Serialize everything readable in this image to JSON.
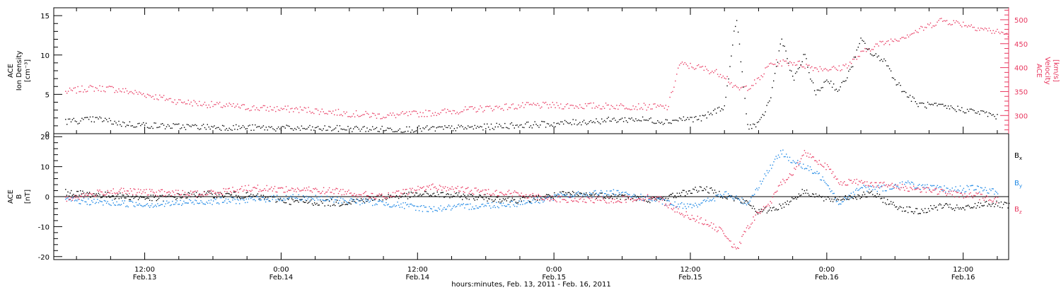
{
  "colors": {
    "black": "#000000",
    "magenta": "#e8375f",
    "blue": "#1e88e5"
  },
  "chart_data": [
    {
      "type": "scatter",
      "panel": "top",
      "ylabel_left": [
        "ACE",
        "Ion Density",
        "[cm⁻³]"
      ],
      "ylabel_right": [
        "ACE",
        "Velocity",
        "[km/s]"
      ],
      "left_axis": {
        "ylim": [
          0,
          16
        ],
        "ticks": [
          0,
          5,
          10,
          15
        ]
      },
      "right_axis": {
        "ylim": [
          262,
          525
        ],
        "ticks": [
          300,
          350,
          400,
          450,
          500
        ]
      },
      "xlim_hours": [
        4,
        88
      ],
      "density_series": {
        "color": "#000000",
        "points": [
          [
            5,
            1.6
          ],
          [
            8,
            1.9
          ],
          [
            10,
            1.3
          ],
          [
            14,
            1.0
          ],
          [
            18,
            0.9
          ],
          [
            22,
            0.8
          ],
          [
            26,
            0.7
          ],
          [
            30,
            0.7
          ],
          [
            34,
            0.6
          ],
          [
            38,
            0.7
          ],
          [
            42,
            0.9
          ],
          [
            44,
            1.1
          ],
          [
            48,
            1.3
          ],
          [
            52,
            1.7
          ],
          [
            55,
            1.9
          ],
          [
            58,
            1.6
          ],
          [
            59,
            1.9
          ],
          [
            61,
            2.0
          ],
          [
            63,
            3.6
          ],
          [
            64,
            15.0
          ],
          [
            65,
            1.0
          ],
          [
            66,
            1.2
          ],
          [
            67,
            4.5
          ],
          [
            68,
            12.3
          ],
          [
            69,
            6.8
          ],
          [
            70,
            10.0
          ],
          [
            71,
            5.0
          ],
          [
            72,
            7.0
          ],
          [
            73,
            5.5
          ],
          [
            74,
            8.0
          ],
          [
            75,
            12.0
          ],
          [
            76,
            10.0
          ],
          [
            77,
            9.5
          ],
          [
            78,
            6.8
          ],
          [
            79,
            5.0
          ],
          [
            80,
            3.8
          ],
          [
            82,
            3.5
          ],
          [
            84,
            3.1
          ],
          [
            86,
            2.6
          ],
          [
            87,
            2.2
          ]
        ]
      },
      "velocity_series": {
        "color": "#e8375f",
        "points": [
          [
            5,
            350
          ],
          [
            7,
            358
          ],
          [
            9,
            357
          ],
          [
            12,
            345
          ],
          [
            15,
            330
          ],
          [
            18,
            323
          ],
          [
            22,
            316
          ],
          [
            26,
            313
          ],
          [
            30,
            305
          ],
          [
            33,
            300
          ],
          [
            37,
            306
          ],
          [
            40,
            312
          ],
          [
            43,
            318
          ],
          [
            46,
            322
          ],
          [
            50,
            321
          ],
          [
            55,
            320
          ],
          [
            58,
            318
          ],
          [
            59,
            408
          ],
          [
            61,
            400
          ],
          [
            63,
            385
          ],
          [
            64,
            355
          ],
          [
            65,
            360
          ],
          [
            66,
            375
          ],
          [
            67,
            410
          ],
          [
            69,
            412
          ],
          [
            71,
            400
          ],
          [
            73,
            398
          ],
          [
            74,
            410
          ],
          [
            75,
            430
          ],
          [
            76,
            445
          ],
          [
            78,
            460
          ],
          [
            80,
            478
          ],
          [
            82,
            500
          ],
          [
            84,
            492
          ],
          [
            86,
            480
          ],
          [
            88,
            470
          ]
        ]
      }
    },
    {
      "type": "scatter",
      "panel": "bottom",
      "ylabel": [
        "ACE",
        "B",
        "[nT]"
      ],
      "ylim": [
        -21,
        21
      ],
      "yticks": [
        -20,
        -10,
        0,
        10,
        20
      ],
      "xlim_hours": [
        4,
        88
      ],
      "legend": [
        {
          "name": "B",
          "sub": "x",
          "color": "#000000"
        },
        {
          "name": "B",
          "sub": "y",
          "color": "#1e88e5"
        },
        {
          "name": "B",
          "sub": "z",
          "color": "#e8375f"
        }
      ],
      "series": [
        {
          "name": "Bx",
          "color": "#000000",
          "points": [
            [
              5,
              1.5
            ],
            [
              9,
              0.5
            ],
            [
              13,
              -0.5
            ],
            [
              17,
              1.0
            ],
            [
              21,
              0.5
            ],
            [
              25,
              -1.5
            ],
            [
              29,
              -2.0
            ],
            [
              33,
              0.0
            ],
            [
              37,
              1.0
            ],
            [
              41,
              0.0
            ],
            [
              45,
              -1.0
            ],
            [
              49,
              1.0
            ],
            [
              53,
              0.5
            ],
            [
              57,
              -1.0
            ],
            [
              59,
              1.0
            ],
            [
              61,
              3.0
            ],
            [
              63,
              0.5
            ],
            [
              65,
              -2.0
            ],
            [
              66,
              -5.0
            ],
            [
              68,
              -3.0
            ],
            [
              70,
              2.0
            ],
            [
              72,
              -1.0
            ],
            [
              74,
              0.0
            ],
            [
              76,
              1.0
            ],
            [
              78,
              -3.0
            ],
            [
              80,
              -5.0
            ],
            [
              82,
              -3.0
            ],
            [
              84,
              -4.0
            ],
            [
              86,
              -2.0
            ],
            [
              88,
              -3.0
            ]
          ]
        },
        {
          "name": "By",
          "color": "#1e88e5",
          "points": [
            [
              5,
              -1.0
            ],
            [
              9,
              -2.0
            ],
            [
              13,
              -2.5
            ],
            [
              17,
              -1.5
            ],
            [
              21,
              -1.0
            ],
            [
              25,
              0.0
            ],
            [
              29,
              -1.0
            ],
            [
              33,
              -2.0
            ],
            [
              37,
              -4.0
            ],
            [
              41,
              -3.0
            ],
            [
              45,
              -2.0
            ],
            [
              49,
              0.5
            ],
            [
              53,
              1.5
            ],
            [
              57,
              -1.0
            ],
            [
              59,
              -3.0
            ],
            [
              61,
              -2.0
            ],
            [
              63,
              1.0
            ],
            [
              65,
              -2.0
            ],
            [
              67,
              10.0
            ],
            [
              68,
              15.0
            ],
            [
              69,
              12.0
            ],
            [
              71,
              8.0
            ],
            [
              72,
              5.0
            ],
            [
              73,
              -2.0
            ],
            [
              75,
              3.0
            ],
            [
              77,
              3.0
            ],
            [
              79,
              4.5
            ],
            [
              81,
              3.0
            ],
            [
              83,
              2.5
            ],
            [
              85,
              3.0
            ],
            [
              87,
              1.5
            ]
          ]
        },
        {
          "name": "Bz",
          "color": "#e8375f",
          "points": [
            [
              5,
              -0.5
            ],
            [
              9,
              2.0
            ],
            [
              13,
              1.5
            ],
            [
              17,
              1.0
            ],
            [
              21,
              3.0
            ],
            [
              25,
              2.5
            ],
            [
              29,
              2.0
            ],
            [
              33,
              0.0
            ],
            [
              37,
              3.5
            ],
            [
              41,
              2.0
            ],
            [
              45,
              1.0
            ],
            [
              49,
              -1.0
            ],
            [
              53,
              -1.0
            ],
            [
              57,
              0.0
            ],
            [
              59,
              -5.0
            ],
            [
              61,
              -8.0
            ],
            [
              63,
              -12.0
            ],
            [
              64,
              -18.0
            ],
            [
              65,
              -10.0
            ],
            [
              66,
              -5.0
            ],
            [
              67,
              -2.0
            ],
            [
              68,
              5.0
            ],
            [
              69,
              8.0
            ],
            [
              70,
              15.0
            ],
            [
              72,
              10.0
            ],
            [
              73,
              5.0
            ],
            [
              75,
              5.0
            ],
            [
              77,
              4.0
            ],
            [
              79,
              3.0
            ],
            [
              81,
              2.5
            ],
            [
              83,
              1.0
            ],
            [
              85,
              0.5
            ],
            [
              87,
              -1.0
            ]
          ]
        }
      ]
    }
  ],
  "x_axis": {
    "ticks": [
      {
        "h": 12,
        "time": "12:00",
        "date": "Feb.13"
      },
      {
        "h": 24,
        "time": "0:00",
        "date": "Feb.14"
      },
      {
        "h": 36,
        "time": "12:00",
        "date": "Feb.14"
      },
      {
        "h": 48,
        "time": "0:00",
        "date": "Feb.15"
      },
      {
        "h": 60,
        "time": "12:00",
        "date": "Feb.15"
      },
      {
        "h": 72,
        "time": "0:00",
        "date": "Feb.16"
      },
      {
        "h": 84,
        "time": "12:00",
        "date": "Feb.16"
      }
    ],
    "title": "hours:minutes, Feb. 13, 2011 - Feb. 16, 2011"
  }
}
